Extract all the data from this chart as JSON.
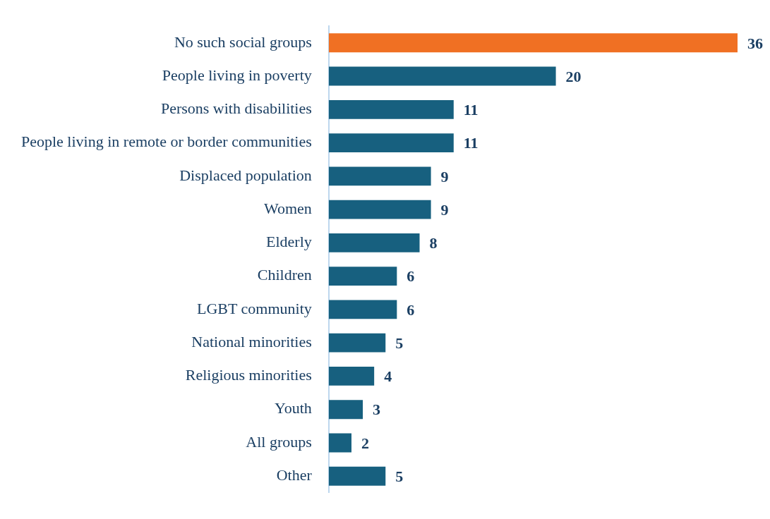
{
  "chart_data": {
    "type": "bar",
    "orientation": "horizontal",
    "categories": [
      "No such social groups",
      "People living in poverty",
      "Persons with disabilities",
      "People living in remote or border communities",
      "Displaced population",
      "Women",
      "Elderly",
      "Children",
      "LGBT community",
      "National minorities",
      "Religious minorities",
      "Youth",
      "All groups",
      "Other"
    ],
    "values": [
      36,
      20,
      11,
      11,
      9,
      9,
      8,
      6,
      6,
      5,
      4,
      3,
      2,
      5
    ],
    "colors": [
      "#f07023",
      "#17607f",
      "#17607f",
      "#17607f",
      "#17607f",
      "#17607f",
      "#17607f",
      "#17607f",
      "#17607f",
      "#17607f",
      "#17607f",
      "#17607f",
      "#17607f",
      "#17607f"
    ],
    "xlim": [
      0,
      36
    ],
    "data_labels": true,
    "grid": false,
    "legend": false,
    "tick_labels": "y"
  }
}
